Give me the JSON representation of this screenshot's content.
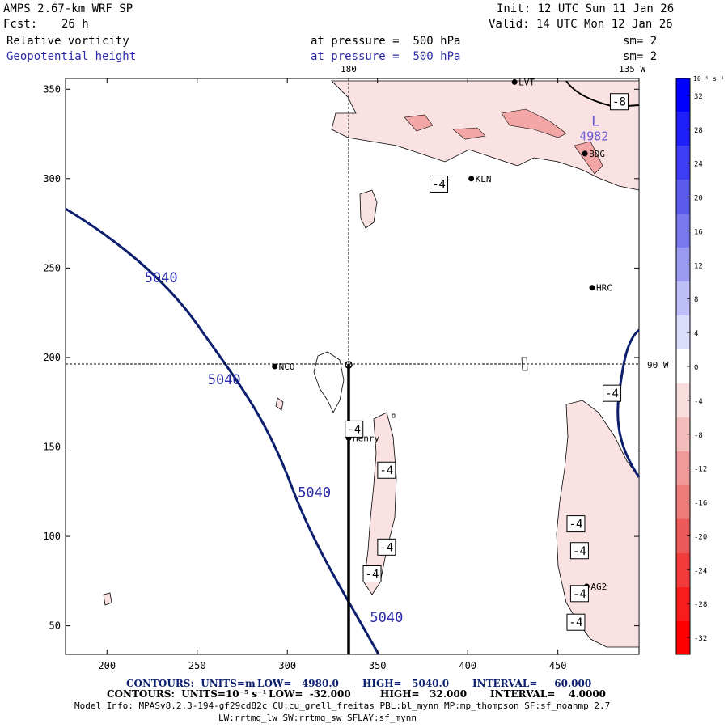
{
  "header": {
    "model": "AMPS 2.67-km WRF SP",
    "fcst_label": "Fcst:",
    "fcst_value": "26 h",
    "init": "Init: 12 UTC Sun 11 Jan 26",
    "valid": "Valid: 14 UTC Mon 12 Jan 26",
    "field1_name": "Relative vorticity",
    "field1_level": "at pressure =  500 hPa",
    "field1_sm": "sm= 2",
    "field2_name": "Geopotential height",
    "field2_level": "at pressure =  500 hPa",
    "field2_sm": "sm= 2"
  },
  "map_labels": {
    "lon_180": "180",
    "lon_135w": "135 W",
    "lon_90w": "90 W"
  },
  "stations": [
    {
      "name": "LVT",
      "x": 426,
      "y": 354
    },
    {
      "name": "BDG",
      "x": 465,
      "y": 314
    },
    {
      "name": "KLN",
      "x": 402,
      "y": 300
    },
    {
      "name": "HRC",
      "x": 469,
      "y": 239
    },
    {
      "name": "NCO",
      "x": 293,
      "y": 195
    },
    {
      "name": "Henry",
      "x": 334,
      "y": 155
    },
    {
      "name": "AG2",
      "x": 466,
      "y": 72
    }
  ],
  "colorbar": {
    "unit_label": "10⁻⁵ s⁻¹",
    "ticks": [
      "32",
      "28",
      "24",
      "20",
      "16",
      "12",
      "8",
      "4",
      "0",
      "-4",
      "-8",
      "-12",
      "-16",
      "-20",
      "-24",
      "-28",
      "-32"
    ],
    "colors": [
      "#0000ff",
      "#1f1ff9",
      "#3d3df3",
      "#5a5aee",
      "#7a7af0",
      "#9a9af3",
      "#bdbdf7",
      "#dcdcfb",
      "#ffffff",
      "#f9dcdc",
      "#f5bcbc",
      "#f29a9a",
      "#ef7b7b",
      "#ee5a5a",
      "#f23c3c",
      "#f81d1d",
      "#ff0000"
    ]
  },
  "chart_data": {
    "type": "contour",
    "xlim": [
      177,
      495
    ],
    "ylim": [
      34,
      356
    ],
    "x_ticks": [
      200,
      250,
      300,
      350,
      400,
      450
    ],
    "y_ticks": [
      50,
      100,
      150,
      200,
      250,
      300,
      350
    ],
    "height_contour_labels": [
      {
        "text": "5040",
        "x": 230,
        "y": 242
      },
      {
        "text": "5040",
        "x": 265,
        "y": 185
      },
      {
        "text": "5040",
        "x": 315,
        "y": 122
      },
      {
        "text": "5040",
        "x": 355,
        "y": 52
      }
    ],
    "low_marker": {
      "letter": "L",
      "value": "4982",
      "x": 470,
      "y": 325
    },
    "vorticity_labels": [
      {
        "text": "-8",
        "x": 484,
        "y": 343
      },
      {
        "text": "-4",
        "x": 384,
        "y": 297
      },
      {
        "text": "-4",
        "x": 337,
        "y": 160
      },
      {
        "text": "-4",
        "x": 355,
        "y": 137
      },
      {
        "text": "-4",
        "x": 355,
        "y": 94
      },
      {
        "text": "-4",
        "x": 347,
        "y": 79
      },
      {
        "text": "-4",
        "x": 480,
        "y": 180
      },
      {
        "text": "-4",
        "x": 460,
        "y": 107
      },
      {
        "text": "-4",
        "x": 462,
        "y": 92
      },
      {
        "text": "-4",
        "x": 462,
        "y": 68
      },
      {
        "text": "-4",
        "x": 460,
        "y": 52
      }
    ]
  },
  "footer": {
    "line1_contours": "CONTOURS:  UNITS=m",
    "line1_low": "LOW=   4980.0",
    "line1_high": "HIGH=   5040.0",
    "line1_interval": "INTERVAL=     60.000",
    "line2_contours": "CONTOURS:  UNITS=10⁻⁵ s⁻¹",
    "line2_low": "LOW=  -32.000",
    "line2_high": "HIGH=   32.000",
    "line2_interval": "INTERVAL=    4.0000",
    "model_info": "Model Info: MPASv8.2.3-194-gf29cd82c CU:cu_grell_freitas PBL:bl_mynn MP:mp_thompson SF:sf_noahmp 2.7",
    "model_info2": "LW:rrtmg_lw SW:rrtmg_sw SFLAY:sf_mynn"
  }
}
